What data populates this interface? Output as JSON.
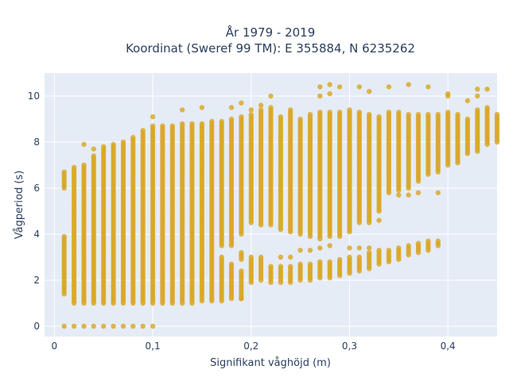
{
  "chart_data": {
    "type": "scatter",
    "title_lines": [
      "År 1979 - 2019",
      "Koordinat (Sweref 99 TM): E 355884, N 6235262"
    ],
    "xlabel": "Signifikant våghöjd (m)",
    "ylabel": "Vågperiod (s)",
    "xlim": [
      -0.01,
      0.45
    ],
    "ylim": [
      -0.45,
      11.0
    ],
    "xticks": [
      0,
      0.1,
      0.2,
      0.3,
      0.4
    ],
    "xtick_labels": [
      "0",
      "0,1",
      "0,2",
      "0,3",
      "0,4"
    ],
    "yticks": [
      0,
      2,
      4,
      6,
      8,
      10
    ],
    "ytick_labels": [
      "0",
      "2",
      "4",
      "6",
      "8",
      "10"
    ],
    "grid": true,
    "legend": "none",
    "colors": {
      "marker": "#DAA520",
      "plot_bg": "#E5ECF6",
      "grid": "#ffffff"
    },
    "series": [
      {
        "x_step": 0.01,
        "columns": [
          [
            0.01,
            [
              [
                1.4,
                3.9
              ],
              [
                6.0,
                6.7
              ]
            ],
            [
              0
            ]
          ],
          [
            0.02,
            [
              [
                1.0,
                6.9
              ]
            ],
            [
              0
            ]
          ],
          [
            0.03,
            [
              [
                1.0,
                7.0
              ]
            ],
            [
              0,
              7.9
            ]
          ],
          [
            0.04,
            [
              [
                1.0,
                7.4
              ]
            ],
            [
              0,
              7.7
            ]
          ],
          [
            0.05,
            [
              [
                1.0,
                7.8
              ]
            ],
            [
              0
            ]
          ],
          [
            0.06,
            [
              [
                1.0,
                7.9
              ]
            ],
            [
              0
            ]
          ],
          [
            0.07,
            [
              [
                1.0,
                8.0
              ]
            ],
            [
              0
            ]
          ],
          [
            0.08,
            [
              [
                1.0,
                8.2
              ]
            ],
            [
              0
            ]
          ],
          [
            0.09,
            [
              [
                1.0,
                8.5
              ]
            ],
            [
              0
            ]
          ],
          [
            0.1,
            [
              [
                1.0,
                8.7
              ]
            ],
            [
              0,
              9.1
            ]
          ],
          [
            0.11,
            [
              [
                1.0,
                8.7
              ]
            ],
            []
          ],
          [
            0.12,
            [
              [
                1.0,
                8.7
              ]
            ],
            []
          ],
          [
            0.13,
            [
              [
                1.0,
                8.8
              ]
            ],
            [
              9.4
            ]
          ],
          [
            0.14,
            [
              [
                1.0,
                8.8
              ]
            ],
            []
          ],
          [
            0.15,
            [
              [
                1.1,
                8.8
              ]
            ],
            [
              9.5
            ]
          ],
          [
            0.16,
            [
              [
                1.1,
                8.9
              ]
            ],
            []
          ],
          [
            0.17,
            [
              [
                1.1,
                3.0
              ],
              [
                3.5,
                8.9
              ]
            ],
            []
          ],
          [
            0.18,
            [
              [
                1.2,
                2.7
              ],
              [
                3.5,
                9.0
              ]
            ],
            [
              9.5
            ]
          ],
          [
            0.19,
            [
              [
                1.2,
                2.4
              ],
              [
                2.9,
                3.2
              ],
              [
                4.0,
                9.1
              ]
            ],
            [
              1.2,
              9.7
            ]
          ],
          [
            0.2,
            [
              [
                1.9,
                3.0
              ],
              [
                4.5,
                9.2
              ]
            ],
            [
              9.4
            ]
          ],
          [
            0.21,
            [
              [
                2.0,
                3.0
              ],
              [
                4.4,
                9.4
              ]
            ],
            [
              9.6
            ]
          ],
          [
            0.22,
            [
              [
                1.9,
                2.6
              ],
              [
                4.4,
                9.5
              ]
            ],
            [
              10.0
            ]
          ],
          [
            0.23,
            [
              [
                1.9,
                2.6
              ],
              [
                4.2,
                9.1
              ]
            ],
            [
              3.0
            ]
          ],
          [
            0.24,
            [
              [
                1.9,
                2.6
              ],
              [
                4.1,
                9.4
              ]
            ],
            [
              3.0
            ]
          ],
          [
            0.25,
            [
              [
                2.0,
                2.7
              ],
              [
                4.0,
                9.0
              ]
            ],
            [
              3.3
            ]
          ],
          [
            0.26,
            [
              [
                2.0,
                2.7
              ],
              [
                3.9,
                9.2
              ]
            ],
            [
              3.3
            ]
          ],
          [
            0.27,
            [
              [
                2.1,
                2.8
              ],
              [
                3.8,
                9.3
              ]
            ],
            [
              3.4,
              10.4,
              10.0
            ]
          ],
          [
            0.28,
            [
              [
                2.1,
                2.8
              ],
              [
                3.9,
                9.3
              ]
            ],
            [
              3.5,
              10.5,
              10.1
            ]
          ],
          [
            0.29,
            [
              [
                2.2,
                2.9
              ],
              [
                3.9,
                9.3
              ]
            ],
            [
              10.4
            ]
          ],
          [
            0.3,
            [
              [
                2.3,
                3.0
              ],
              [
                4.1,
                9.4
              ]
            ],
            [
              3.4
            ]
          ],
          [
            0.31,
            [
              [
                2.4,
                3.0
              ],
              [
                4.5,
                9.3
              ]
            ],
            [
              3.4,
              10.4
            ]
          ],
          [
            0.32,
            [
              [
                2.5,
                3.2
              ],
              [
                4.5,
                9.2
              ]
            ],
            [
              10.2,
              3.4
            ]
          ],
          [
            0.33,
            [
              [
                2.7,
                3.3
              ],
              [
                5.0,
                9.1
              ]
            ],
            [
              4.6
            ]
          ],
          [
            0.34,
            [
              [
                2.8,
                3.3
              ],
              [
                5.8,
                9.3
              ]
            ],
            [
              10.4
            ]
          ],
          [
            0.35,
            [
              [
                2.9,
                3.4
              ],
              [
                5.9,
                9.3
              ]
            ],
            [
              5.7
            ]
          ],
          [
            0.36,
            [
              [
                3.1,
                3.5
              ],
              [
                6.0,
                9.2
              ]
            ],
            [
              10.5,
              5.7
            ]
          ],
          [
            0.37,
            [
              [
                3.2,
                3.6
              ],
              [
                6.3,
                9.2
              ]
            ],
            [
              5.8
            ]
          ],
          [
            0.38,
            [
              [
                3.3,
                3.7
              ],
              [
                6.6,
                9.2
              ]
            ],
            [
              10.4
            ]
          ],
          [
            0.39,
            [
              [
                3.5,
                3.7
              ],
              [
                6.7,
                9.2
              ]
            ],
            [
              5.8
            ]
          ],
          [
            0.4,
            [
              [
                7.0,
                9.3
              ]
            ],
            [
              10.0,
              10.1
            ]
          ],
          [
            0.41,
            [
              [
                7.1,
                9.2
              ]
            ],
            []
          ],
          [
            0.42,
            [
              [
                7.5,
                9.0
              ]
            ],
            [
              9.8
            ]
          ],
          [
            0.43,
            [
              [
                7.6,
                9.4
              ]
            ],
            [
              10.3,
              10.0
            ]
          ],
          [
            0.44,
            [
              [
                7.9,
                9.5
              ]
            ],
            [
              10.3
            ]
          ],
          [
            0.45,
            [
              [
                8.0,
                9.2
              ]
            ],
            []
          ]
        ]
      }
    ]
  }
}
